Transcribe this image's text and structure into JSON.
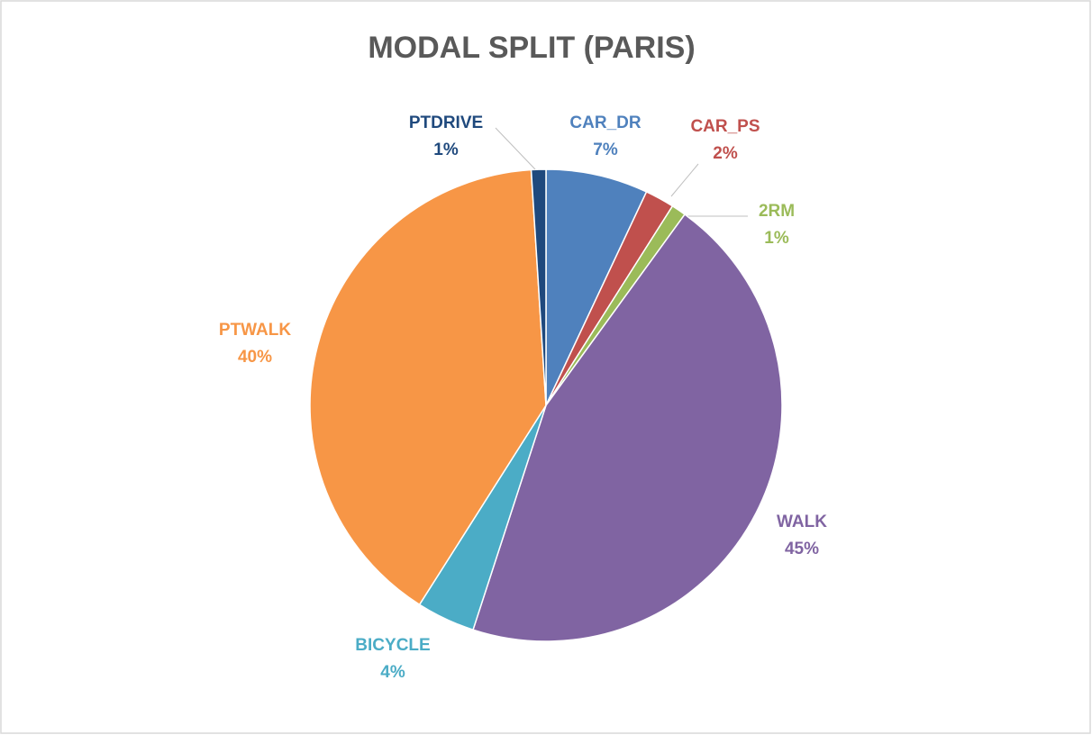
{
  "chart_data": {
    "type": "pie",
    "title": "MODAL SPLIT (PARIS)",
    "categories": [
      "CAR_DR",
      "CAR_PS",
      "2RM",
      "WALK",
      "BICYCLE",
      "PTWALK",
      "PTDRIVE"
    ],
    "values": [
      7,
      2,
      1,
      45,
      4,
      40,
      1
    ],
    "value_labels": [
      "7%",
      "2%",
      "1%",
      "45%",
      "4%",
      "40%",
      "1%"
    ],
    "colors": [
      "#4f81bd",
      "#c0504d",
      "#9bbb59",
      "#8064a2",
      "#4bacc6",
      "#f79646",
      "#1f497d"
    ]
  }
}
